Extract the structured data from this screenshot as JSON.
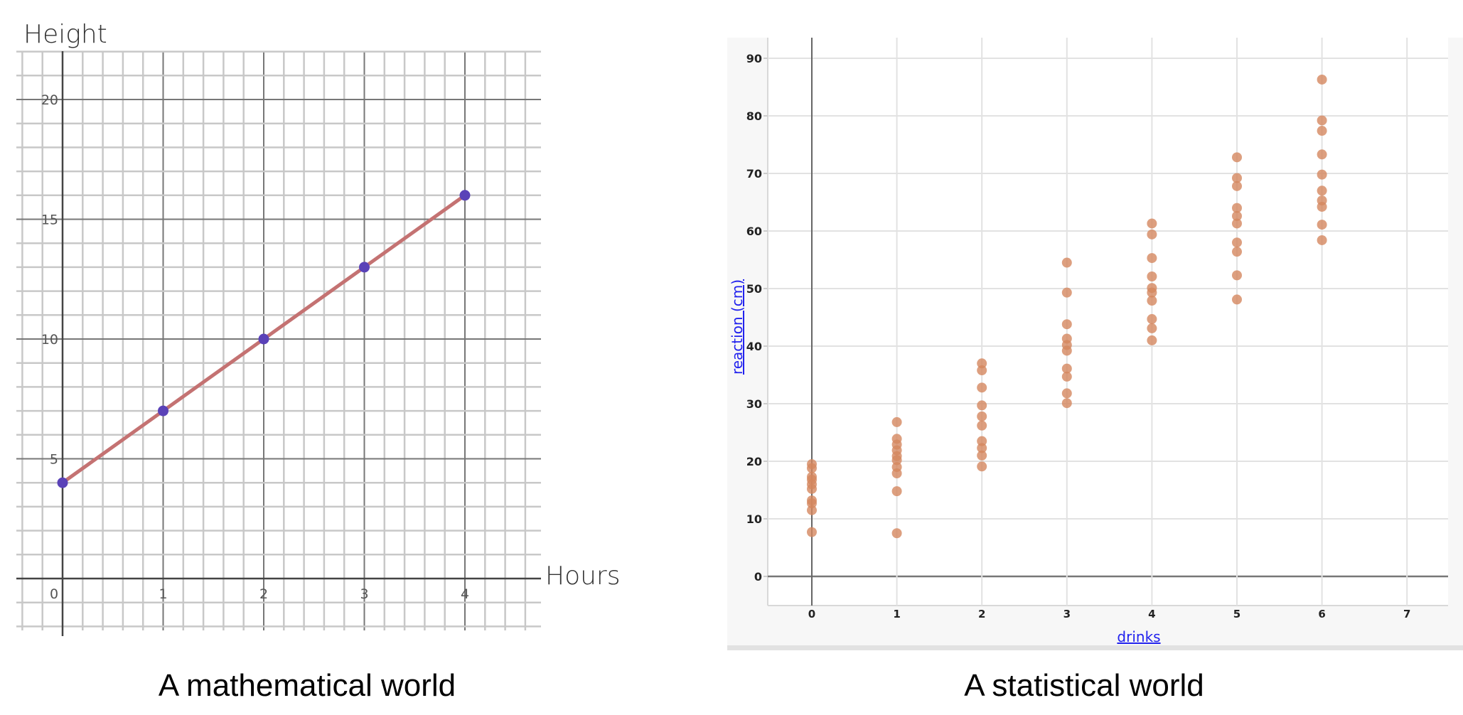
{
  "left": {
    "caption": "A mathematical world",
    "y_label": "Height",
    "x_label": "Hours",
    "line_color": "#c47272",
    "point_color": "#5a42b8"
  },
  "right": {
    "caption": "A statistical world",
    "y_label": "reaction (cm)",
    "x_label": "drinks",
    "point_color": "#d4875f",
    "label_color": "#2222ee"
  },
  "chart_data": [
    {
      "type": "line",
      "title": "A mathematical world",
      "xlabel": "Hours",
      "ylabel": "Height",
      "x": [
        0,
        1,
        2,
        3,
        4
      ],
      "values": [
        4,
        7,
        10,
        13,
        16
      ],
      "x_ticks": [
        0,
        1,
        2,
        3,
        4
      ],
      "y_ticks": [
        5,
        10,
        15,
        20
      ],
      "xlim": [
        -0.45,
        4.7
      ],
      "ylim": [
        -2.2,
        22.0
      ],
      "grid": true,
      "markers": true
    },
    {
      "type": "scatter",
      "title": "A statistical world",
      "xlabel": "drinks",
      "ylabel": "reaction (cm)",
      "x_ticks": [
        0,
        1,
        2,
        3,
        4,
        5,
        6,
        7
      ],
      "y_ticks": [
        0,
        10,
        20,
        30,
        40,
        50,
        60,
        70,
        80,
        90
      ],
      "xlim": [
        -0.5,
        7.3
      ],
      "ylim": [
        -5,
        95
      ],
      "grid": true,
      "series": [
        {
          "name": "drinks=0",
          "x": 0,
          "values": [
            19.5,
            18.8,
            17.3,
            16.8,
            16.0,
            15.2,
            13.2,
            12.7,
            11.5,
            7.7
          ]
        },
        {
          "name": "drinks=1",
          "x": 1,
          "values": [
            26.8,
            23.9,
            22.9,
            21.9,
            20.9,
            20.2,
            19.0,
            17.9,
            14.8,
            7.5
          ]
        },
        {
          "name": "drinks=2",
          "x": 2,
          "values": [
            37.0,
            35.8,
            32.8,
            29.7,
            27.8,
            26.2,
            23.5,
            22.3,
            21.0,
            19.1
          ]
        },
        {
          "name": "drinks=3",
          "x": 3,
          "values": [
            54.5,
            49.3,
            43.8,
            41.3,
            40.2,
            39.2,
            36.1,
            34.7,
            31.8,
            30.1
          ]
        },
        {
          "name": "drinks=4",
          "x": 4,
          "values": [
            61.3,
            59.4,
            55.3,
            52.1,
            50.1,
            49.3,
            47.9,
            44.7,
            43.1,
            41.0
          ]
        },
        {
          "name": "drinks=5",
          "x": 5,
          "values": [
            72.8,
            69.2,
            67.8,
            64.0,
            62.6,
            61.3,
            58.0,
            56.4,
            52.3,
            48.1
          ]
        },
        {
          "name": "drinks=6",
          "x": 6,
          "values": [
            86.3,
            79.2,
            77.4,
            73.3,
            69.8,
            67.0,
            65.3,
            64.2,
            61.1,
            58.4
          ]
        }
      ]
    }
  ]
}
